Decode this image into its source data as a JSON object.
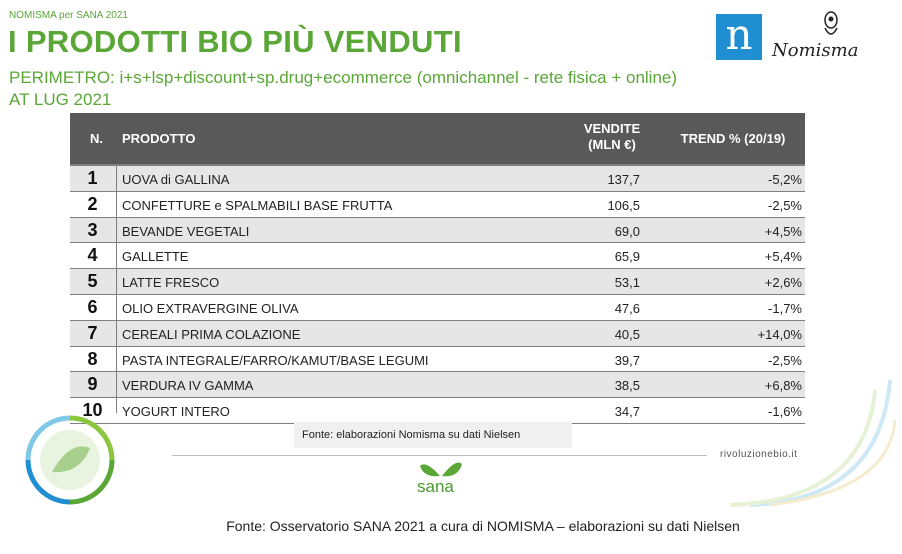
{
  "header": {
    "eyebrow": "NOMISMA per SANA 2021",
    "title": "I PRODOTTI BIO PIÙ VENDUTI",
    "subtitle_line1": "PERIMETRO: i+s+lsp+discount+sp.drug+ecommerce (omnichannel - rete fisica + online)",
    "subtitle_line2": "AT LUG 2021"
  },
  "logo": {
    "letter": "n",
    "word": "Nomisma"
  },
  "table": {
    "headers": {
      "n": "N.",
      "product": "PRODOTTO",
      "sales_line1": "VENDITE",
      "sales_line2": "(MLN €)",
      "trend": "TREND % (20/19)"
    },
    "rows": [
      {
        "n": "1",
        "product": "UOVA di GALLINA",
        "sales": "137,7",
        "trend": "-5,2%"
      },
      {
        "n": "2",
        "product": "CONFETTURE e SPALMABILI BASE FRUTTA",
        "sales": "106,5",
        "trend": "-2,5%"
      },
      {
        "n": "3",
        "product": "BEVANDE VEGETALI",
        "sales": "69,0",
        "trend": "+4,5%"
      },
      {
        "n": "4",
        "product": "GALLETTE",
        "sales": "65,9",
        "trend": "+5,4%"
      },
      {
        "n": "5",
        "product": "LATTE FRESCO",
        "sales": "53,1",
        "trend": "+2,6%"
      },
      {
        "n": "6",
        "product": "OLIO EXTRAVERGINE OLIVA",
        "sales": "47,6",
        "trend": "-1,7%"
      },
      {
        "n": "7",
        "product": "CEREALI PRIMA COLAZIONE",
        "sales": "40,5",
        "trend": "+14,0%"
      },
      {
        "n": "8",
        "product": "PASTA INTEGRALE/FARRO/KAMUT/BASE LEGUMI",
        "sales": "39,7",
        "trend": "-2,5%"
      },
      {
        "n": "9",
        "product": "VERDURA IV GAMMA",
        "sales": "38,5",
        "trend": "+6,8%"
      },
      {
        "n": "10",
        "product": "YOGURT INTERO",
        "sales": "34,7",
        "trend": "-1,6%"
      }
    ]
  },
  "source_box": "Fonte: elaborazioni Nomisma su dati Nielsen",
  "brand": {
    "site": "rivoluzionebio.it",
    "sana": "sana"
  },
  "footer": "Fonte: Osservatorio SANA 2021 a cura di NOMISMA – elaborazioni su dati Nielsen",
  "colors": {
    "accent": "#5aa637",
    "header_bg": "#595959",
    "logo_blue": "#1f8fd1"
  }
}
